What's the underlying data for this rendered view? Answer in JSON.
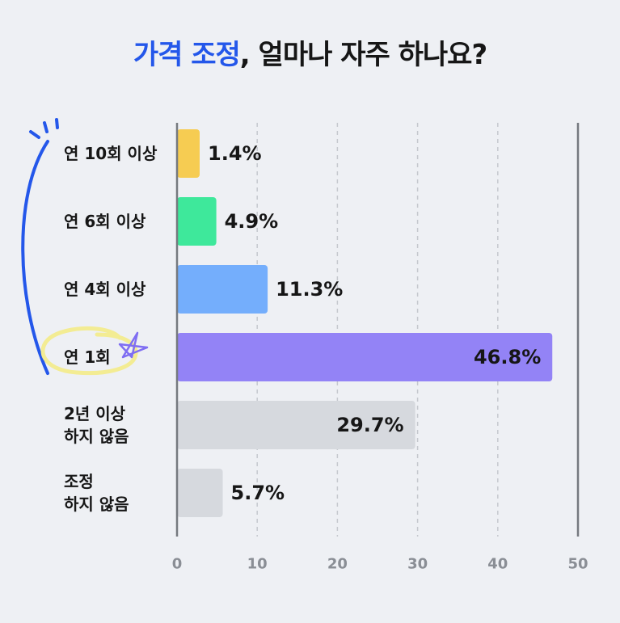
{
  "title": {
    "accent": "가격 조정",
    "rest": ", 얼마나 자주 하나요?"
  },
  "colors": {
    "accent": "#2457ea",
    "highlight_yellow": "#f3ec93",
    "star": "#7f6ef2"
  },
  "chart_data": {
    "type": "bar",
    "orientation": "horizontal",
    "categories": [
      [
        "연 10회 이상"
      ],
      [
        "연 6회 이상"
      ],
      [
        "연 4회 이상"
      ],
      [
        "연 1회"
      ],
      [
        "2년 이상",
        "하지 않음"
      ],
      [
        "조정",
        "하지 않음"
      ]
    ],
    "values": [
      1.4,
      4.9,
      11.3,
      46.8,
      29.7,
      5.7
    ],
    "value_labels": [
      "1.4%",
      "4.9%",
      "11.3%",
      "46.8%",
      "29.7%",
      "5.7%"
    ],
    "bar_colors": [
      "#f6cc52",
      "#3ee89b",
      "#74aefc",
      "#9383f6",
      "#d6d9de",
      "#d6d9de"
    ],
    "xlim": [
      0,
      50
    ],
    "x_ticks": [
      0,
      10,
      20,
      30,
      40,
      50
    ],
    "grid": "vertical-dashed"
  }
}
